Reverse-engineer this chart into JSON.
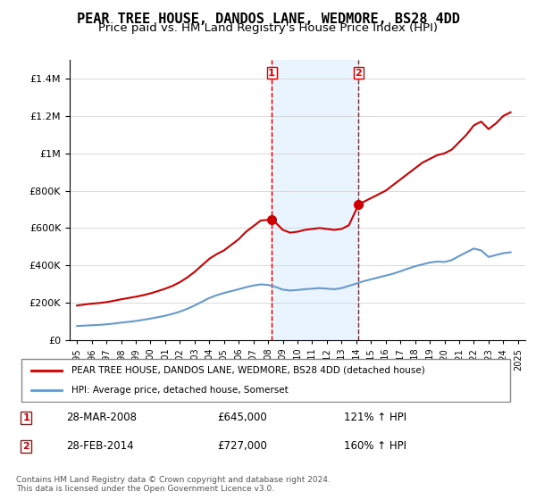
{
  "title": "PEAR TREE HOUSE, DANDOS LANE, WEDMORE, BS28 4DD",
  "subtitle": "Price paid vs. HM Land Registry's House Price Index (HPI)",
  "title_fontsize": 11,
  "subtitle_fontsize": 9.5,
  "sale1_date": 2008.24,
  "sale1_label": "1",
  "sale1_price": 645000,
  "sale1_text": "28-MAR-2008",
  "sale1_hpi": "121% ↑ HPI",
  "sale2_date": 2014.16,
  "sale2_label": "2",
  "sale2_price": 727000,
  "sale2_text": "28-FEB-2014",
  "sale2_hpi": "160% ↑ HPI",
  "red_line_color": "#cc0000",
  "blue_line_color": "#6699cc",
  "vline_color": "#cc0000",
  "shade_color": "#ddeeff",
  "legend_red_label": "PEAR TREE HOUSE, DANDOS LANE, WEDMORE, BS28 4DD (detached house)",
  "legend_blue_label": "HPI: Average price, detached house, Somerset",
  "footer1": "Contains HM Land Registry data © Crown copyright and database right 2024.",
  "footer2": "This data is licensed under the Open Government Licence v3.0.",
  "xmin": 1994.5,
  "xmax": 2025.5,
  "ymin": 0,
  "ymax": 1500000,
  "red_x": [
    1995,
    1995.5,
    1996,
    1996.5,
    1997,
    1997.5,
    1998,
    1998.5,
    1999,
    1999.5,
    2000,
    2000.5,
    2001,
    2001.5,
    2002,
    2002.5,
    2003,
    2003.5,
    2004,
    2004.5,
    2005,
    2005.5,
    2006,
    2006.5,
    2007,
    2007.5,
    2008.24,
    2008.5,
    2009,
    2009.5,
    2010,
    2010.5,
    2011,
    2011.5,
    2012,
    2012.5,
    2013,
    2013.5,
    2014.16,
    2014.5,
    2015,
    2015.5,
    2016,
    2016.5,
    2017,
    2017.5,
    2018,
    2018.5,
    2019,
    2019.5,
    2020,
    2020.5,
    2021,
    2021.5,
    2022,
    2022.5,
    2023,
    2023.5,
    2024,
    2024.5
  ],
  "red_y": [
    185000,
    190000,
    195000,
    198000,
    203000,
    210000,
    218000,
    225000,
    232000,
    240000,
    250000,
    262000,
    275000,
    290000,
    310000,
    335000,
    365000,
    400000,
    435000,
    460000,
    480000,
    510000,
    540000,
    580000,
    610000,
    640000,
    645000,
    630000,
    590000,
    575000,
    580000,
    590000,
    595000,
    600000,
    595000,
    590000,
    595000,
    615000,
    727000,
    740000,
    760000,
    780000,
    800000,
    830000,
    860000,
    890000,
    920000,
    950000,
    970000,
    990000,
    1000000,
    1020000,
    1060000,
    1100000,
    1150000,
    1170000,
    1130000,
    1160000,
    1200000,
    1220000
  ],
  "blue_x": [
    1995,
    1995.5,
    1996,
    1996.5,
    1997,
    1997.5,
    1998,
    1998.5,
    1999,
    1999.5,
    2000,
    2000.5,
    2001,
    2001.5,
    2002,
    2002.5,
    2003,
    2003.5,
    2004,
    2004.5,
    2005,
    2005.5,
    2006,
    2006.5,
    2007,
    2007.5,
    2008,
    2008.5,
    2009,
    2009.5,
    2010,
    2010.5,
    2011,
    2011.5,
    2012,
    2012.5,
    2013,
    2013.5,
    2014,
    2014.5,
    2015,
    2015.5,
    2016,
    2016.5,
    2017,
    2017.5,
    2018,
    2018.5,
    2019,
    2019.5,
    2020,
    2020.5,
    2021,
    2021.5,
    2022,
    2022.5,
    2023,
    2023.5,
    2024,
    2024.5
  ],
  "blue_y": [
    75000,
    77000,
    79000,
    81000,
    84000,
    88000,
    93000,
    97000,
    102000,
    108000,
    115000,
    122000,
    130000,
    140000,
    152000,
    167000,
    185000,
    205000,
    225000,
    240000,
    252000,
    262000,
    272000,
    283000,
    292000,
    298000,
    295000,
    285000,
    270000,
    265000,
    268000,
    272000,
    275000,
    278000,
    275000,
    272000,
    278000,
    290000,
    302000,
    315000,
    325000,
    335000,
    345000,
    355000,
    368000,
    382000,
    395000,
    405000,
    415000,
    420000,
    418000,
    428000,
    450000,
    470000,
    490000,
    480000,
    445000,
    455000,
    465000,
    470000
  ]
}
